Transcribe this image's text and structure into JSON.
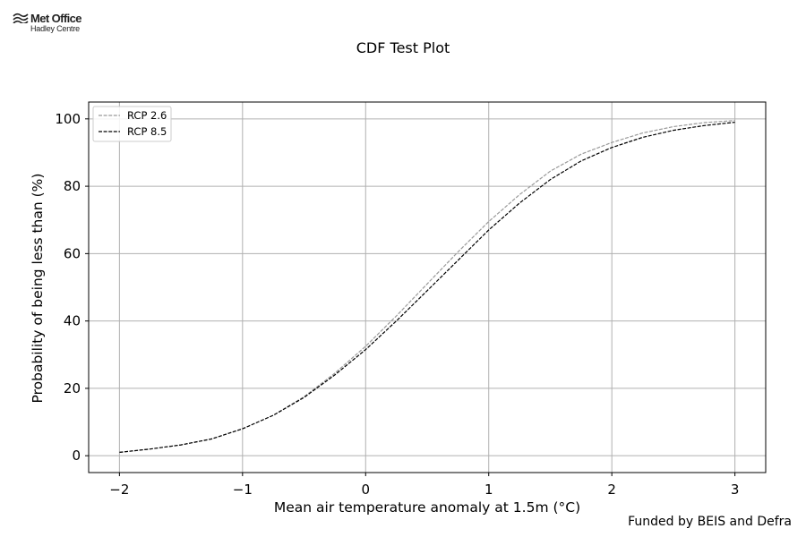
{
  "logo": {
    "line1": "Met Office",
    "line2": "Hadley Centre"
  },
  "footer": "Funded by BEIS and Defra",
  "chart_data": {
    "type": "line",
    "title": "CDF Test Plot",
    "xlabel": "Mean air temperature anomaly at 1.5m (°C)",
    "ylabel": "Probability of being less than (%)",
    "xlim": [
      -2.25,
      3.25
    ],
    "ylim": [
      -5,
      105
    ],
    "xticks": [
      -2,
      -1,
      0,
      1,
      2,
      3
    ],
    "xtick_labels": [
      "−2",
      "−1",
      "0",
      "1",
      "2",
      "3"
    ],
    "yticks": [
      0,
      20,
      40,
      60,
      80,
      100
    ],
    "ytick_labels": [
      "0",
      "20",
      "40",
      "60",
      "80",
      "100"
    ],
    "grid": true,
    "legend_position": "top-left",
    "series": [
      {
        "name": "RCP 2.6",
        "color": "#999999",
        "dash": "dashed",
        "x": [
          -2.0,
          -1.75,
          -1.5,
          -1.25,
          -1.0,
          -0.75,
          -0.5,
          -0.25,
          0.0,
          0.25,
          0.5,
          0.75,
          1.0,
          1.25,
          1.5,
          1.75,
          2.0,
          2.25,
          2.5,
          2.75,
          3.0
        ],
        "y": [
          1.0,
          2.0,
          3.2,
          5.0,
          8.0,
          12.0,
          17.5,
          24.5,
          32.5,
          41.5,
          51.0,
          60.5,
          69.5,
          77.5,
          84.5,
          89.5,
          93.0,
          95.8,
          97.7,
          98.9,
          99.5
        ]
      },
      {
        "name": "RCP 8.5",
        "color": "#000000",
        "dash": "dashed",
        "x": [
          -2.0,
          -1.75,
          -1.5,
          -1.25,
          -1.0,
          -0.75,
          -0.5,
          -0.25,
          0.0,
          0.25,
          0.5,
          0.75,
          1.0,
          1.25,
          1.5,
          1.75,
          2.0,
          2.25,
          2.5,
          2.75,
          3.0
        ],
        "y": [
          1.0,
          2.0,
          3.2,
          5.0,
          8.0,
          12.0,
          17.3,
          24.0,
          31.5,
          40.0,
          49.0,
          58.0,
          67.0,
          75.0,
          82.0,
          87.5,
          91.5,
          94.5,
          96.6,
          98.0,
          99.0
        ]
      }
    ]
  }
}
